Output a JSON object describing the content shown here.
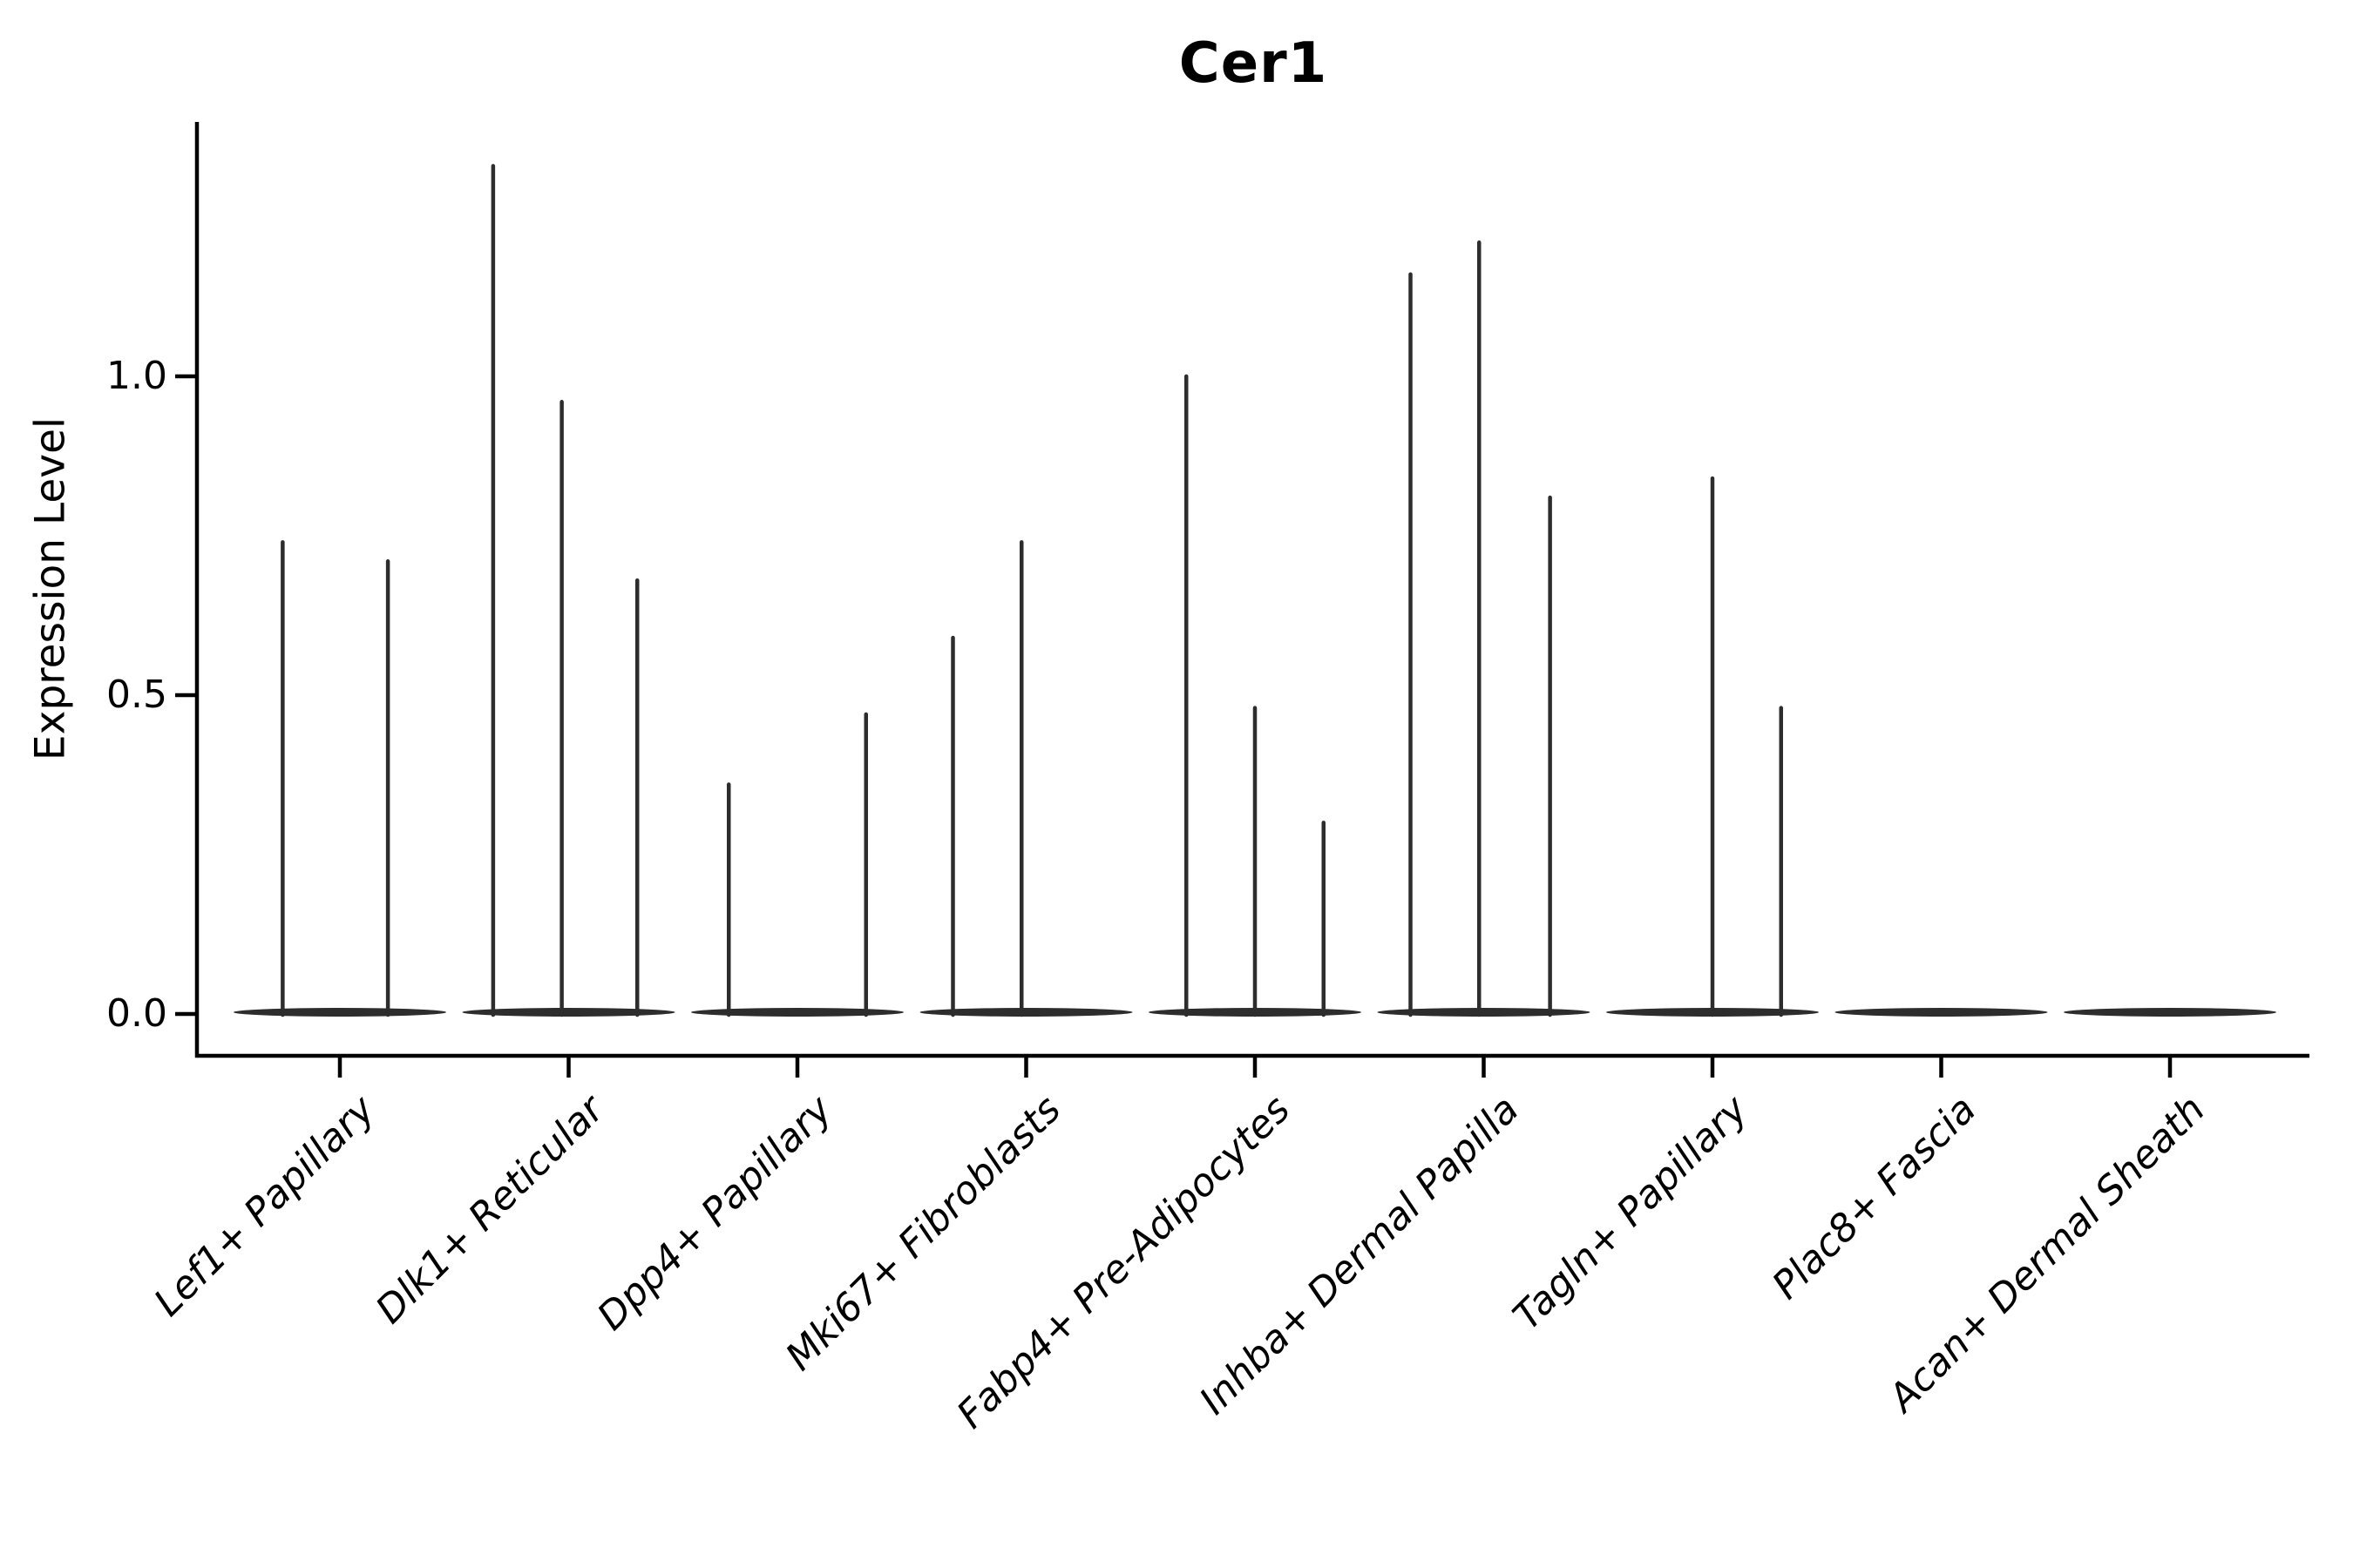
{
  "chart_data": {
    "type": "violin",
    "title": "Cer1",
    "ylabel": "Expression Level",
    "xlabel": "",
    "ytick_labels": [
      "0.0",
      "0.5",
      "1.0"
    ],
    "ytick_values": [
      0.0,
      0.5,
      1.0
    ],
    "ylim": [
      -0.066,
      1.4
    ],
    "grid": false,
    "legend": "none",
    "categories": [
      "Lef1+ Papillary",
      "Dlk1+ Reticular",
      "Dpp4+ Papillary",
      "Mki67+ Fibroblasts",
      "Fabp4+ Pre-Adipocytes",
      "Inhba+ Dermal Papilla",
      "Tagln+ Papillary",
      "Plac8+ Fascia",
      "Acan+ Dermal Sheath"
    ],
    "groups": [
      {
        "category": "Lef1+ Papillary",
        "spikes": [
          {
            "offset": -0.25,
            "value": 0.74
          },
          {
            "offset": 0.21,
            "value": 0.71
          }
        ]
      },
      {
        "category": "Dlk1+ Reticular",
        "spikes": [
          {
            "offset": -0.33,
            "value": 1.33
          },
          {
            "offset": -0.03,
            "value": 0.96
          },
          {
            "offset": 0.3,
            "value": 0.68
          }
        ]
      },
      {
        "category": "Dpp4+ Papillary",
        "spikes": [
          {
            "offset": -0.3,
            "value": 0.36
          },
          {
            "offset": 0.3,
            "value": 0.47
          }
        ]
      },
      {
        "category": "Mki67+ Fibroblasts",
        "spikes": [
          {
            "offset": -0.32,
            "value": 0.59
          },
          {
            "offset": -0.02,
            "value": 0.74
          }
        ]
      },
      {
        "category": "Fabp4+ Pre-Adipocytes",
        "spikes": [
          {
            "offset": -0.3,
            "value": 1.0
          },
          {
            "offset": 0.0,
            "value": 0.48
          },
          {
            "offset": 0.3,
            "value": 0.3
          }
        ]
      },
      {
        "category": "Inhba+ Dermal Papilla",
        "spikes": [
          {
            "offset": -0.32,
            "value": 1.16
          },
          {
            "offset": -0.02,
            "value": 1.21
          },
          {
            "offset": 0.29,
            "value": 0.81
          }
        ]
      },
      {
        "category": "Tagln+ Papillary",
        "spikes": [
          {
            "offset": 0.0,
            "value": 0.84
          },
          {
            "offset": 0.3,
            "value": 0.48
          }
        ]
      },
      {
        "category": "Plac8+ Fascia",
        "spikes": []
      },
      {
        "category": "Acan+ Dermal Sheath",
        "spikes": []
      }
    ],
    "colors": {
      "violin": "#2d2d2d",
      "axis": "#000000",
      "text": "#000000",
      "background": "#ffffff"
    }
  }
}
